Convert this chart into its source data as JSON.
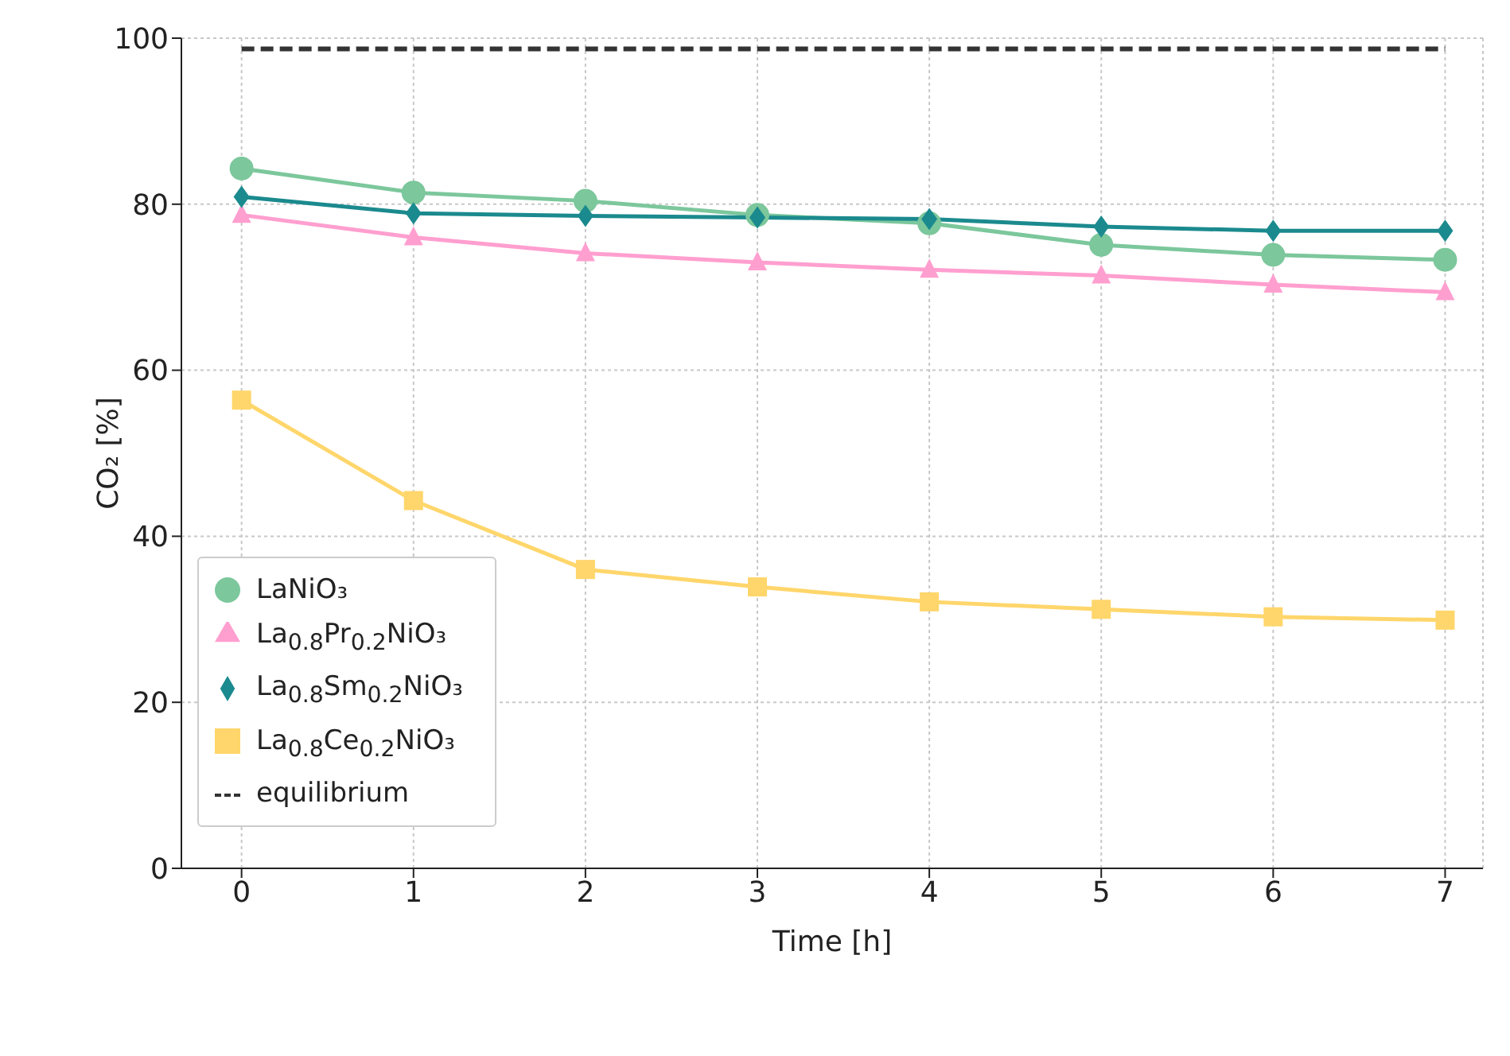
{
  "chart_data": {
    "type": "line",
    "xlabel": "Time [h]",
    "ylabel": "CO₂ [%]",
    "x": [
      0,
      1,
      2,
      3,
      4,
      5,
      6,
      7
    ],
    "xlim": [
      -0.35,
      7.22
    ],
    "xticks": [
      0,
      1,
      2,
      3,
      4,
      5,
      6,
      7
    ],
    "ylim": [
      0,
      100
    ],
    "yticks": [
      0,
      20,
      40,
      60,
      80,
      100
    ],
    "grid": true,
    "legend": "bottom left",
    "series": [
      {
        "name": "LaNiO₃",
        "color": "#7cc79c",
        "marker": "circle",
        "values": [
          84.3,
          81.4,
          80.4,
          78.7,
          77.7,
          75.1,
          73.9,
          73.3
        ]
      },
      {
        "name": "La$_{0.8}$Pr$_{0.2}$NiO₃",
        "color": "#ff9fcf",
        "marker": "triangle",
        "values": [
          78.7,
          76.0,
          74.1,
          73.0,
          72.1,
          71.4,
          70.3,
          69.4
        ]
      },
      {
        "name": "La$_{0.8}$Sm$_{0.2}$NiO₃",
        "color": "#1b8a8e",
        "marker": "diamond",
        "values": [
          80.9,
          78.9,
          78.6,
          78.4,
          78.2,
          77.3,
          76.8,
          76.8
        ]
      },
      {
        "name": "La$_{0.8}$Ce$_{0.2}$NiO₃",
        "color": "#ffd66b",
        "marker": "square",
        "values": [
          56.4,
          44.3,
          36.0,
          33.9,
          32.1,
          31.2,
          30.3,
          29.9
        ]
      },
      {
        "name": "equilibrium",
        "color": "#333333",
        "marker": "none",
        "line_style": "dashed",
        "values": [
          98.7,
          98.7,
          98.7,
          98.7,
          98.7,
          98.7,
          98.7,
          98.7
        ]
      }
    ]
  }
}
